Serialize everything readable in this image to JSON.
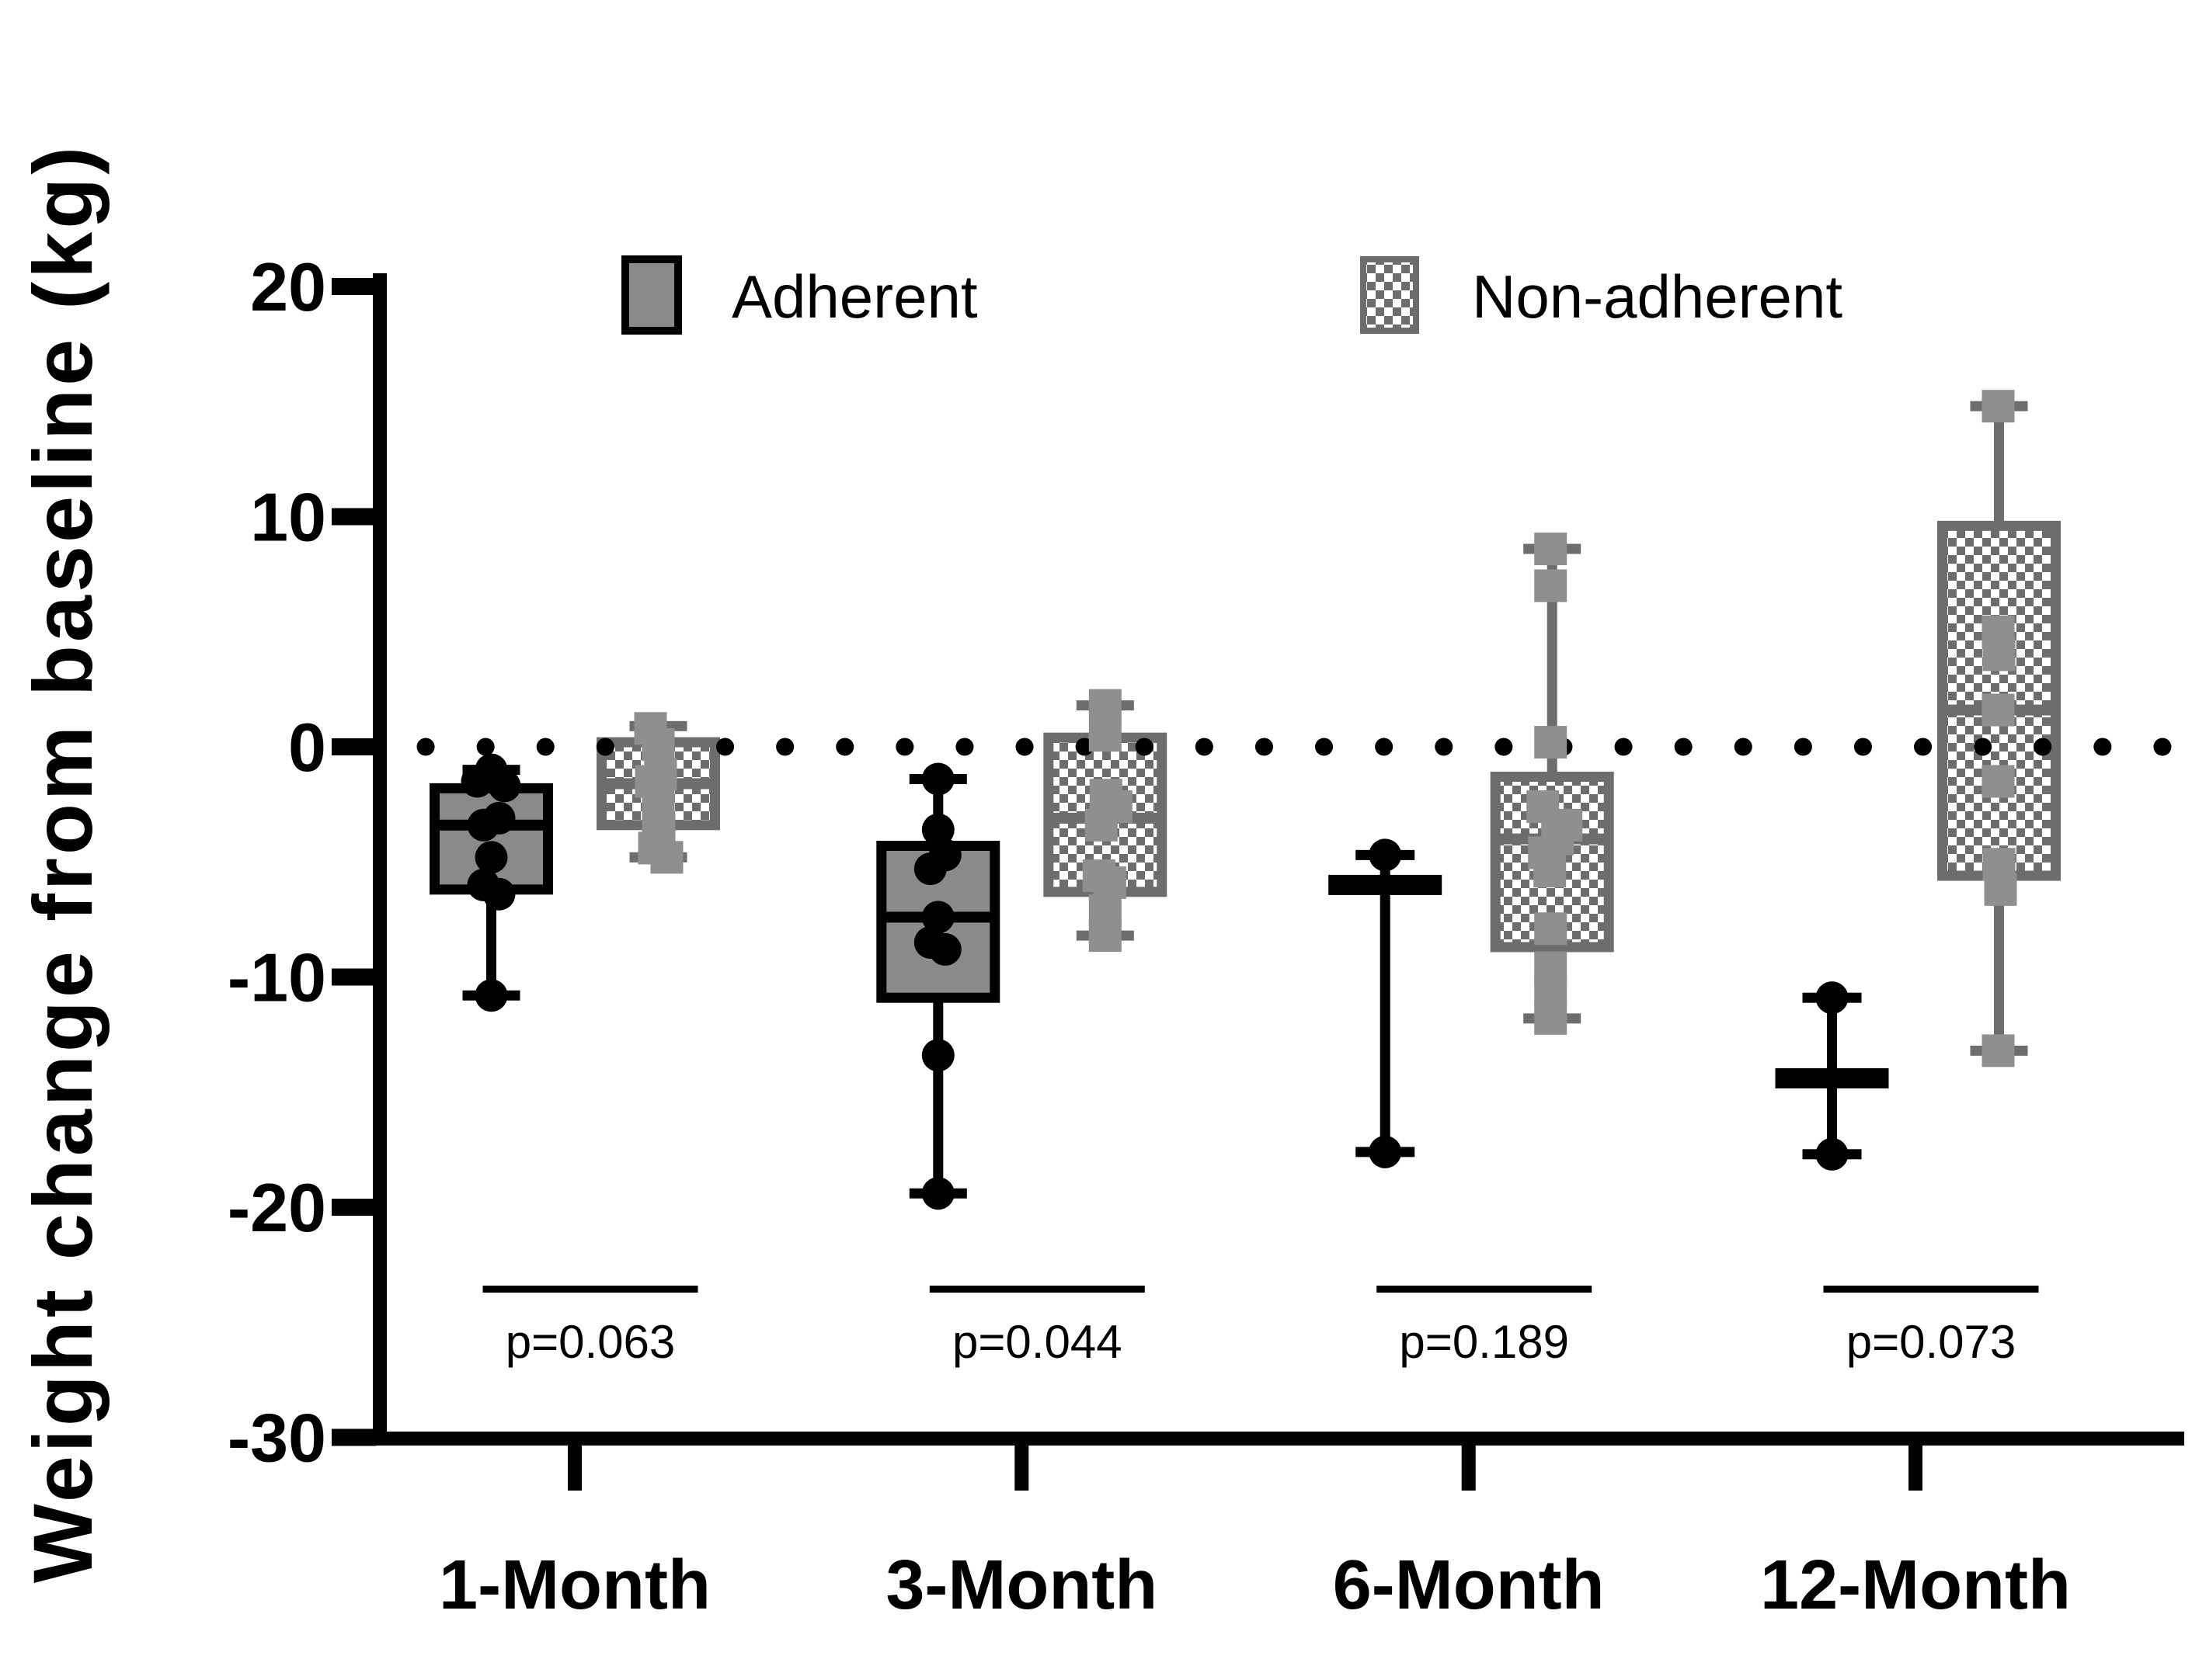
{
  "colors": {
    "background": "#ffffff",
    "text": "#000000",
    "adherent_fill": "#8a8a8a",
    "adherent_line": "#000000",
    "nonadherent_line": "#6d6d6d",
    "nonadherent_marker": "#8f8f8f",
    "zero_line": "#000000"
  },
  "legend": {
    "items": [
      {
        "label": "Adherent",
        "swatch": "solid"
      },
      {
        "label": "Non-adherent",
        "swatch": "checkered"
      }
    ]
  },
  "chart_data": {
    "type": "box",
    "title": "",
    "xlabel": "",
    "ylabel": "Weight change from baseline (kg)",
    "ylim": [
      -30,
      20
    ],
    "yticks": [
      20,
      10,
      0,
      -10,
      -20,
      -30
    ],
    "zero_reference_line": true,
    "legend_position": "top",
    "grid": false,
    "categories": [
      "1-Month",
      "3-Month",
      "6-Month",
      "12-Month"
    ],
    "p_values": [
      {
        "group": "1-Month",
        "label": "p=0.063"
      },
      {
        "group": "3-Month",
        "label": "p=0.044"
      },
      {
        "group": "6-Month",
        "label": "p=0.189"
      },
      {
        "group": "12-Month",
        "label": "p=0.073"
      }
    ],
    "series": [
      {
        "name": "Adherent",
        "marker": "circle",
        "fill_style": "solid",
        "boxes": [
          {
            "category": "1-Month",
            "whisker_low": -10.8,
            "q1": -6.2,
            "median": -3.4,
            "q3": -1.8,
            "whisker_high": -1.0,
            "points": [
              {
                "v": -1.0,
                "dx": 0
              },
              {
                "v": -1.5,
                "dx": -18
              },
              {
                "v": -1.7,
                "dx": 17
              },
              {
                "v": -3.1,
                "dx": 10
              },
              {
                "v": -3.4,
                "dx": -10
              },
              {
                "v": -4.8,
                "dx": 0
              },
              {
                "v": -6.0,
                "dx": -10
              },
              {
                "v": -6.4,
                "dx": 10
              },
              {
                "v": -10.8,
                "dx": 0
              }
            ]
          },
          {
            "category": "3-Month",
            "whisker_low": -19.4,
            "q1": -10.9,
            "median": -7.4,
            "q3": -4.3,
            "whisker_high": -1.4,
            "points": [
              {
                "v": -1.4,
                "dx": 0
              },
              {
                "v": -3.6,
                "dx": 0
              },
              {
                "v": -4.7,
                "dx": 9
              },
              {
                "v": -5.3,
                "dx": -10
              },
              {
                "v": -7.4,
                "dx": 0
              },
              {
                "v": -8.5,
                "dx": -10
              },
              {
                "v": -8.8,
                "dx": 9
              },
              {
                "v": -13.4,
                "dx": 0
              },
              {
                "v": -19.4,
                "dx": 0
              }
            ]
          },
          {
            "category": "6-Month",
            "whisker_low": -17.6,
            "q1": null,
            "median": -6.0,
            "q3": null,
            "whisker_high": -4.7,
            "points": [
              {
                "v": -4.7,
                "dx": 0
              },
              {
                "v": -17.6,
                "dx": 0
              }
            ]
          },
          {
            "category": "12-Month",
            "whisker_low": -17.7,
            "q1": null,
            "median": -14.4,
            "q3": null,
            "whisker_high": -10.9,
            "points": [
              {
                "v": -10.9,
                "dx": 0
              },
              {
                "v": -17.7,
                "dx": 0
              }
            ]
          }
        ]
      },
      {
        "name": "Non-adherent",
        "marker": "square",
        "fill_style": "checkered",
        "boxes": [
          {
            "category": "1-Month",
            "whisker_low": -4.8,
            "q1": -3.4,
            "median": -1.6,
            "q3": 0.2,
            "whisker_high": 0.9,
            "points": [
              {
                "v": 0.8,
                "dx": -10
              },
              {
                "v": 0.1,
                "dx": 0
              },
              {
                "v": -1.2,
                "dx": 3
              },
              {
                "v": -1.5,
                "dx": -9
              },
              {
                "v": -2.1,
                "dx": 0
              },
              {
                "v": -3.0,
                "dx": 0
              },
              {
                "v": -3.6,
                "dx": 1
              },
              {
                "v": -4.4,
                "dx": -5
              },
              {
                "v": -4.8,
                "dx": 11
              }
            ]
          },
          {
            "category": "3-Month",
            "whisker_low": -8.2,
            "q1": -6.3,
            "median": -3.1,
            "q3": 0.4,
            "whisker_high": 1.8,
            "points": [
              {
                "v": 1.8,
                "dx": 0
              },
              {
                "v": 0.5,
                "dx": 0
              },
              {
                "v": -2.1,
                "dx": 1
              },
              {
                "v": -2.6,
                "dx": 14
              },
              {
                "v": -3.4,
                "dx": -5
              },
              {
                "v": -5.6,
                "dx": -8
              },
              {
                "v": -5.9,
                "dx": 6
              },
              {
                "v": -7.1,
                "dx": 0
              },
              {
                "v": -8.2,
                "dx": 0
              }
            ]
          },
          {
            "category": "6-Month",
            "whisker_low": -11.8,
            "q1": -8.7,
            "median": -4.0,
            "q3": -1.3,
            "whisker_high": 8.6,
            "points": [
              {
                "v": 8.6,
                "dx": -2
              },
              {
                "v": 7.0,
                "dx": -2
              },
              {
                "v": 0.2,
                "dx": -2
              },
              {
                "v": -2.6,
                "dx": -12
              },
              {
                "v": -3.4,
                "dx": 18
              },
              {
                "v": -4.0,
                "dx": 7
              },
              {
                "v": -4.6,
                "dx": -10
              },
              {
                "v": -5.4,
                "dx": -3
              },
              {
                "v": -7.9,
                "dx": -2
              },
              {
                "v": -9.6,
                "dx": -2
              },
              {
                "v": -10.6,
                "dx": -2
              },
              {
                "v": -11.8,
                "dx": -2
              }
            ]
          },
          {
            "category": "12-Month",
            "whisker_low": -13.2,
            "q1": -5.6,
            "median": 1.6,
            "q3": 9.6,
            "whisker_high": 14.8,
            "points": [
              {
                "v": 14.8,
                "dx": -1
              },
              {
                "v": 5.0,
                "dx": -1
              },
              {
                "v": 4.0,
                "dx": 0
              },
              {
                "v": 1.6,
                "dx": -1
              },
              {
                "v": -1.5,
                "dx": -1
              },
              {
                "v": -5.1,
                "dx": 0
              },
              {
                "v": -6.2,
                "dx": 2
              },
              {
                "v": -13.2,
                "dx": -1
              }
            ]
          }
        ]
      }
    ]
  }
}
